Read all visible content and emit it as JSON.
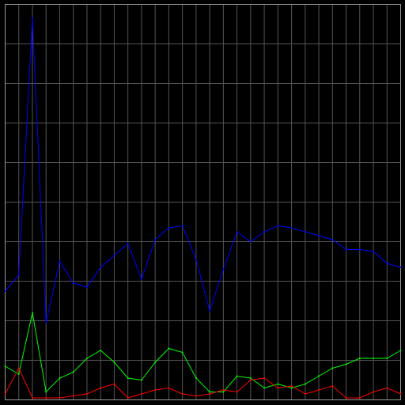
{
  "chart_data": {
    "type": "line",
    "title": "",
    "xlabel": "",
    "ylabel": "",
    "x": [
      0,
      1,
      2,
      3,
      4,
      5,
      6,
      7,
      8,
      9,
      10,
      11,
      12,
      13,
      14,
      15,
      16,
      17,
      18,
      19,
      20,
      21,
      22,
      23,
      24,
      25,
      26,
      27,
      28,
      29
    ],
    "xlim": [
      0,
      29
    ],
    "ylim": [
      0,
      100
    ],
    "grid": true,
    "colors": {
      "background": "#000000",
      "grid": "#555555",
      "border": "#9a9a9a"
    },
    "series": [
      {
        "color": "#0000ff",
        "values": [
          27.5,
          31.5,
          96.5,
          19.5,
          35.0,
          29.5,
          28.5,
          33.5,
          36.5,
          39.5,
          30.5,
          40.5,
          43.5,
          44.0,
          35.5,
          22.5,
          33.0,
          42.5,
          40.0,
          42.5,
          44.0,
          43.5,
          42.5,
          41.5,
          40.5,
          38.0,
          38.0,
          37.5,
          34.5,
          33.5
        ]
      },
      {
        "color": "#00ff00",
        "values": [
          8.5,
          6.5,
          22.0,
          2.0,
          5.5,
          7.0,
          10.5,
          12.5,
          9.5,
          5.5,
          5.0,
          9.5,
          13.0,
          12.0,
          5.5,
          2.0,
          2.0,
          6.0,
          5.5,
          3.0,
          4.0,
          3.0,
          4.0,
          6.0,
          8.0,
          9.0,
          10.5,
          10.5,
          10.5,
          12.5
        ]
      },
      {
        "color": "#ff0000",
        "values": [
          1.5,
          8.0,
          0.5,
          0.5,
          0.5,
          1.0,
          1.5,
          3.0,
          4.0,
          0.5,
          1.5,
          2.5,
          3.0,
          1.5,
          1.0,
          1.5,
          2.5,
          2.0,
          5.0,
          5.5,
          3.0,
          3.5,
          1.5,
          2.5,
          3.5,
          0.5,
          0.5,
          2.0,
          3.0,
          1.5
        ]
      }
    ]
  }
}
